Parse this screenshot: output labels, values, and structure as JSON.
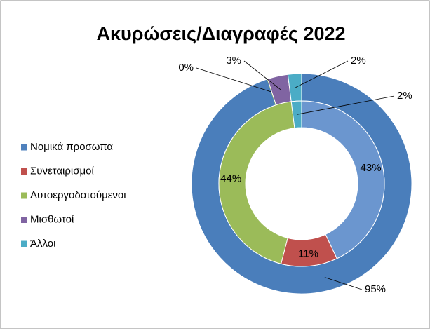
{
  "chart_data": {
    "type": "doughnut",
    "title": "Ακυρώσεις/Διαγραφές 2022",
    "categories": [
      "Νομικά προσωπα",
      "Συνεταιρισμοί",
      "Αυτοεργοδοτούμενοι",
      "Μισθωτοί",
      "Άλλοι"
    ],
    "legend_colors": [
      "#4f81bd",
      "#c0504d",
      "#9bbb59",
      "#8064a2",
      "#4bacc6"
    ],
    "legend": "left",
    "rings": [
      {
        "values": [
          95,
          null,
          0,
          3,
          2
        ],
        "value_labels": [
          "95%",
          null,
          "0%",
          "3%",
          "2%"
        ],
        "colors": [
          "#4a7ebb",
          "#c0504d",
          "#9bbb59",
          "#8064a2",
          "#4bacc6"
        ]
      },
      {
        "values": [
          43,
          11,
          44,
          null,
          2
        ],
        "value_labels": [
          "43%",
          "11%",
          "44%",
          null,
          "2%"
        ],
        "colors": [
          "#6b96cf",
          "#c0504d",
          "#9bbb59",
          "#8064a2",
          "#4bacc6"
        ]
      }
    ]
  }
}
